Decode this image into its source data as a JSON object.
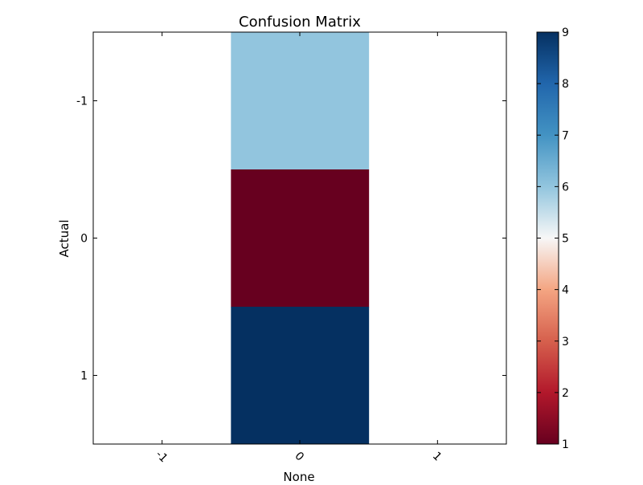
{
  "chart_data": {
    "type": "heatmap",
    "title": "Confusion Matrix",
    "xlabel": "None",
    "ylabel": "Actual",
    "x_categories": [
      "-1",
      "0",
      "1"
    ],
    "y_categories": [
      "-1",
      "0",
      "1"
    ],
    "values": [
      [
        null,
        6,
        null
      ],
      [
        null,
        1,
        null
      ],
      [
        null,
        9,
        null
      ]
    ],
    "colormap": "RdBu",
    "colorbar": {
      "min": 1,
      "max": 9,
      "ticks": [
        "1",
        "2",
        "3",
        "4",
        "5",
        "6",
        "7",
        "8",
        "9"
      ]
    },
    "grid": false
  }
}
